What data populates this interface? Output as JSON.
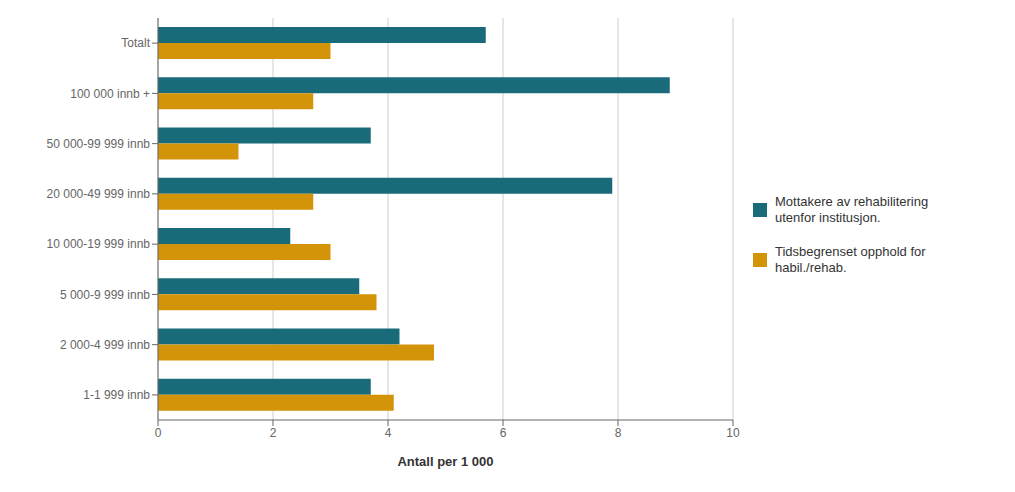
{
  "chart_data": {
    "type": "bar",
    "orientation": "horizontal",
    "xlabel": "Antall per 1 000",
    "categories": [
      "Totalt",
      "100 000 innb +",
      "50 000-99 999 innb",
      "20 000-49 999 innb",
      "10 000-19 999 innb",
      "5 000-9 999 innb",
      "2 000-4 999 innb",
      "1-1 999 innb"
    ],
    "series": [
      {
        "name": "Mottakere av rehabilitering\nutenfor institusjon.",
        "color": "#1a6b7a",
        "values": [
          5.7,
          8.9,
          3.7,
          7.9,
          2.3,
          3.5,
          4.2,
          3.7
        ]
      },
      {
        "name": "Tidsbegrenset opphold for\nhabil./rehab.",
        "color": "#d4940a",
        "values": [
          3.0,
          2.7,
          1.4,
          2.7,
          3.0,
          3.8,
          4.8,
          4.1
        ]
      }
    ],
    "xlim": [
      0,
      10
    ],
    "xticks": [
      0,
      2,
      4,
      6,
      8,
      10
    ],
    "grid": true,
    "legend": "right"
  }
}
